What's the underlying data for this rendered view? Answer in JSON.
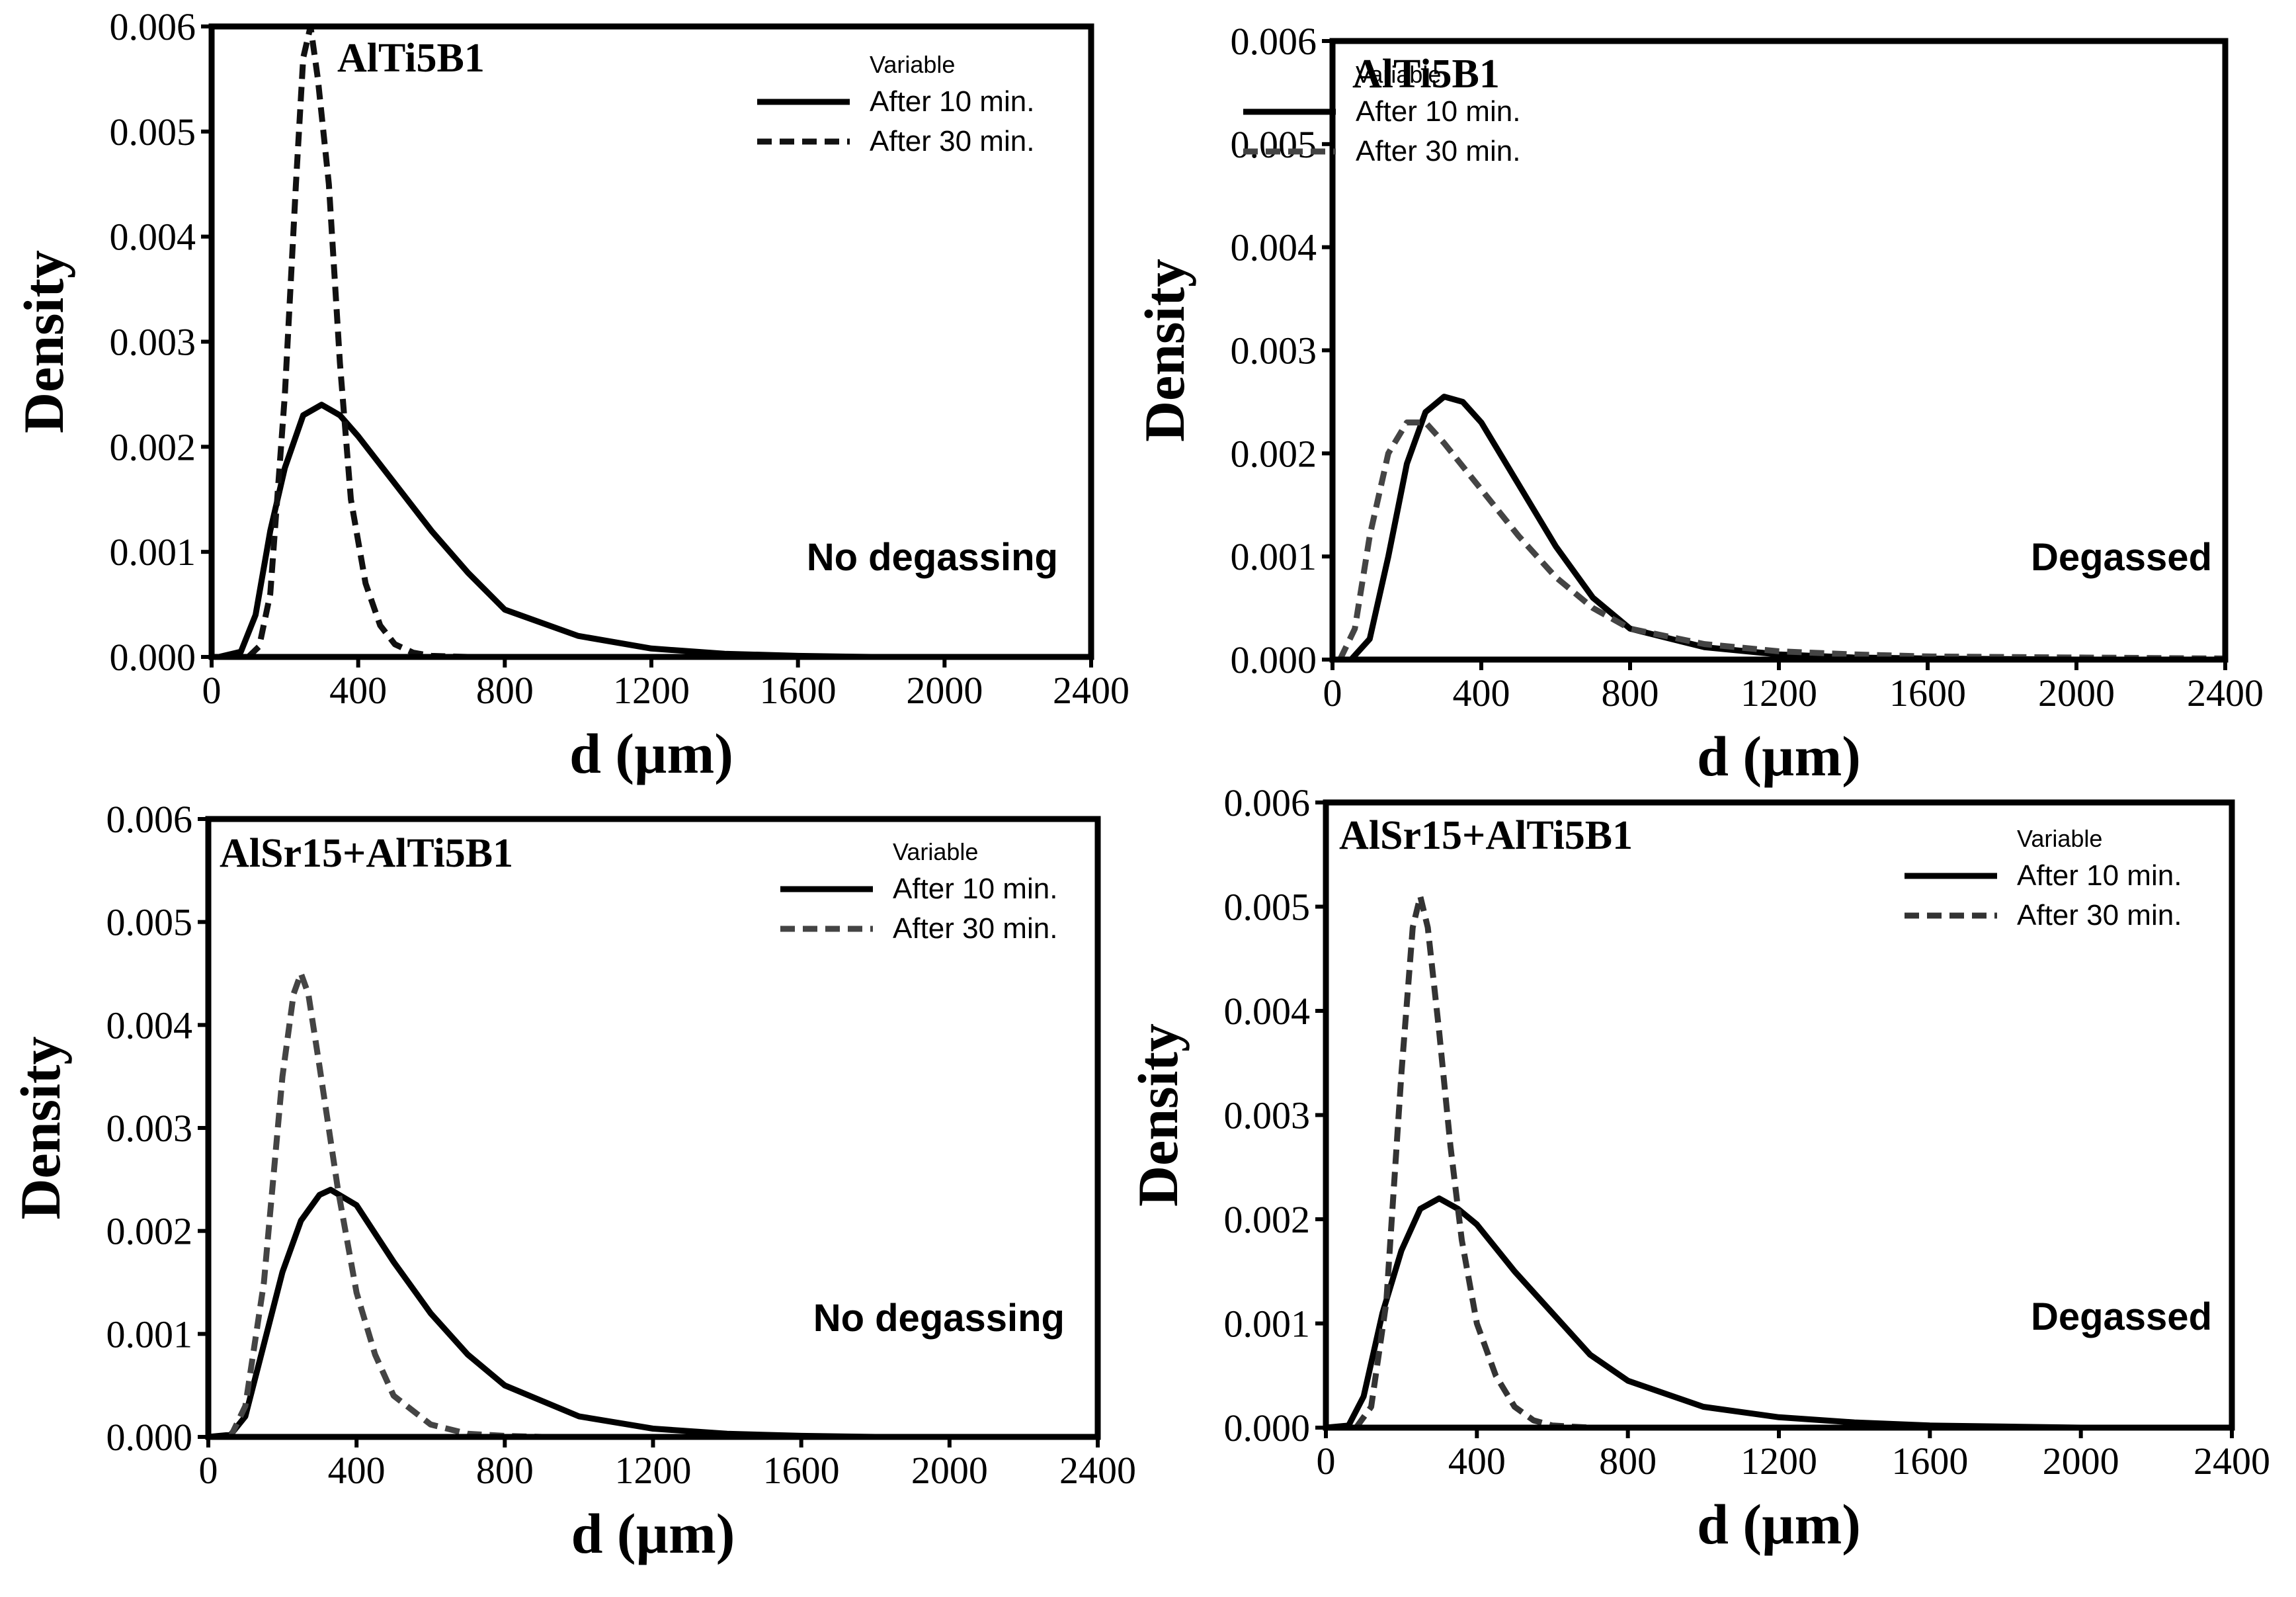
{
  "chart_data": [
    {
      "type": "line",
      "sample": "AlTi5B1",
      "condition": "No degassing",
      "xlabel": "d (µm)",
      "ylabel": "Density",
      "xlim": [
        0,
        2400
      ],
      "ylim": [
        0,
        0.006
      ],
      "xticks": [
        "0",
        "400",
        "800",
        "1200",
        "1600",
        "2000",
        "2400"
      ],
      "yticks": [
        "0.000",
        "0.001",
        "0.002",
        "0.003",
        "0.004",
        "0.005",
        "0.006"
      ],
      "legend": {
        "title": "Variable",
        "placement": "top-right"
      },
      "series": [
        {
          "name": "After 10 min.",
          "style": "solid",
          "color": "#000000",
          "x": [
            20,
            80,
            120,
            160,
            200,
            250,
            300,
            350,
            400,
            500,
            600,
            700,
            800,
            1000,
            1200,
            1400,
            1600,
            1800,
            2000,
            2200,
            2400
          ],
          "y": [
            0,
            5e-05,
            0.0004,
            0.0012,
            0.0018,
            0.0023,
            0.0024,
            0.0023,
            0.0021,
            0.00165,
            0.0012,
            0.0008,
            0.00045,
            0.0002,
            8e-05,
            3e-05,
            1e-05,
            0,
            0,
            0,
            0
          ]
        },
        {
          "name": "After 30 min.",
          "style": "dashed",
          "color": "#111111",
          "x": [
            100,
            130,
            160,
            200,
            230,
            250,
            270,
            290,
            320,
            350,
            380,
            420,
            460,
            500,
            550,
            600,
            700
          ],
          "y": [
            0,
            0.0001,
            0.0006,
            0.0025,
            0.0045,
            0.0057,
            0.006,
            0.0055,
            0.0045,
            0.0028,
            0.0015,
            0.0007,
            0.0003,
            0.00012,
            4e-05,
            1e-05,
            0
          ]
        }
      ]
    },
    {
      "type": "line",
      "sample": "AlTi5B1",
      "condition": "Degassed",
      "xlabel": "d (µm)",
      "ylabel": "Density",
      "xlim": [
        0,
        2400
      ],
      "ylim": [
        0,
        0.006
      ],
      "xticks": [
        "0",
        "400",
        "800",
        "1200",
        "1600",
        "2000",
        "2400"
      ],
      "yticks": [
        "0.000",
        "0.001",
        "0.002",
        "0.003",
        "0.004",
        "0.005",
        "0.006"
      ],
      "legend": {
        "title": "Variable",
        "placement": "top-right"
      },
      "series": [
        {
          "name": "After 10 min.",
          "style": "solid",
          "color": "#000000",
          "x": [
            50,
            100,
            150,
            200,
            250,
            300,
            350,
            400,
            500,
            600,
            700,
            800,
            1000,
            1200,
            1400,
            1600,
            2000,
            2400
          ],
          "y": [
            0,
            0.0002,
            0.001,
            0.0019,
            0.0024,
            0.00255,
            0.0025,
            0.0023,
            0.0017,
            0.0011,
            0.0006,
            0.0003,
            0.00012,
            5e-05,
            2e-05,
            1e-05,
            0,
            0
          ]
        },
        {
          "name": "After 30 min.",
          "style": "dashed",
          "color": "#444444",
          "x": [
            20,
            60,
            100,
            150,
            200,
            250,
            300,
            400,
            500,
            600,
            700,
            800,
            1000,
            1200,
            1400,
            1600,
            2000,
            2400
          ],
          "y": [
            0,
            0.0003,
            0.0012,
            0.002,
            0.0023,
            0.0023,
            0.0021,
            0.00165,
            0.0012,
            0.0008,
            0.0005,
            0.0003,
            0.00015,
            8e-05,
            5e-05,
            3e-05,
            2e-05,
            1e-05
          ]
        }
      ]
    },
    {
      "type": "line",
      "sample": "AlSr15+AlTi5B1",
      "condition": "No degassing",
      "xlabel": "d (µm)",
      "ylabel": "Density",
      "xlim": [
        0,
        2400
      ],
      "ylim": [
        0,
        0.006
      ],
      "xticks": [
        "0",
        "400",
        "800",
        "1200",
        "1600",
        "2000",
        "2400"
      ],
      "yticks": [
        "0.000",
        "0.001",
        "0.002",
        "0.003",
        "0.004",
        "0.005",
        "0.006"
      ],
      "legend": {
        "title": "Variable",
        "placement": "top-right"
      },
      "series": [
        {
          "name": "After 10 min.",
          "style": "solid",
          "color": "#000000",
          "x": [
            0,
            60,
            100,
            150,
            200,
            250,
            300,
            330,
            400,
            500,
            600,
            700,
            800,
            1000,
            1200,
            1400,
            1600,
            1800,
            2000,
            2280
          ],
          "y": [
            0,
            2e-05,
            0.0002,
            0.0009,
            0.0016,
            0.0021,
            0.00235,
            0.0024,
            0.00225,
            0.0017,
            0.0012,
            0.0008,
            0.0005,
            0.0002,
            8e-05,
            3e-05,
            1e-05,
            0,
            0,
            0
          ]
        },
        {
          "name": "After 30 min.",
          "style": "dashed",
          "color": "#444444",
          "x": [
            60,
            100,
            150,
            200,
            230,
            250,
            270,
            300,
            350,
            400,
            450,
            500,
            600,
            700,
            800,
            900
          ],
          "y": [
            0,
            0.0003,
            0.0015,
            0.0035,
            0.0043,
            0.0045,
            0.0043,
            0.0036,
            0.0024,
            0.0014,
            0.0008,
            0.0004,
            0.00012,
            3e-05,
            1e-05,
            0
          ]
        }
      ]
    },
    {
      "type": "line",
      "sample": "AlSr15+AlTi5B1",
      "condition": "Degassed",
      "xlabel": "d (µm)",
      "ylabel": "Density",
      "xlim": [
        0,
        2400
      ],
      "ylim": [
        0,
        0.006
      ],
      "xticks": [
        "0",
        "400",
        "800",
        "1200",
        "1600",
        "2000",
        "2400"
      ],
      "yticks": [
        "0.000",
        "0.001",
        "0.002",
        "0.003",
        "0.004",
        "0.005",
        "0.006"
      ],
      "legend": {
        "title": "Variable",
        "placement": "top-right"
      },
      "series": [
        {
          "name": "After 10 min.",
          "style": "solid",
          "color": "#000000",
          "x": [
            0,
            60,
            100,
            150,
            200,
            250,
            300,
            350,
            400,
            500,
            600,
            700,
            800,
            1000,
            1200,
            1400,
            1600,
            1800,
            2000,
            2400
          ],
          "y": [
            0,
            2e-05,
            0.0003,
            0.0011,
            0.0017,
            0.0021,
            0.0022,
            0.0021,
            0.00195,
            0.0015,
            0.0011,
            0.0007,
            0.00045,
            0.0002,
            0.0001,
            5e-05,
            2e-05,
            1e-05,
            0,
            0
          ]
        },
        {
          "name": "After 30 min.",
          "style": "dashed",
          "color": "#333333",
          "x": [
            80,
            120,
            160,
            200,
            230,
            250,
            270,
            300,
            330,
            360,
            400,
            450,
            500,
            550,
            600,
            700,
            850
          ],
          "y": [
            0,
            0.0002,
            0.0012,
            0.0034,
            0.0048,
            0.0051,
            0.0048,
            0.0038,
            0.0027,
            0.0018,
            0.001,
            0.0005,
            0.0002,
            7e-05,
            2e-05,
            0,
            0
          ]
        }
      ]
    }
  ]
}
